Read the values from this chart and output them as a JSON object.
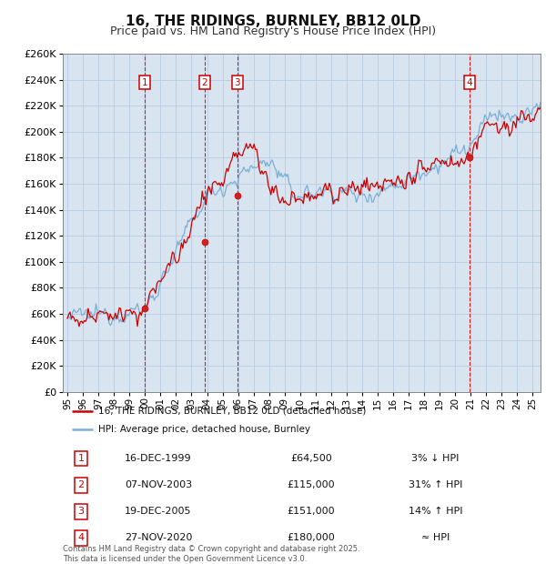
{
  "title": "16, THE RIDINGS, BURNLEY, BB12 0LD",
  "subtitle": "Price paid vs. HM Land Registry's House Price Index (HPI)",
  "title_fontsize": 11,
  "subtitle_fontsize": 9,
  "background_color": "#d8e4f0",
  "figure_bg": "#ffffff",
  "grid_color": "#b8cce4",
  "red_color": "#cc0000",
  "blue_color": "#7bafd4",
  "legend_items": [
    "16, THE RIDINGS, BURNLEY, BB12 0LD (detached house)",
    "HPI: Average price, detached house, Burnley"
  ],
  "sales": [
    {
      "num": 1,
      "date": "16-DEC-1999",
      "year": 1999.96,
      "price": 64500,
      "rel": "3% ↓ HPI"
    },
    {
      "num": 2,
      "date": "07-NOV-2003",
      "year": 2003.85,
      "price": 115000,
      "rel": "31% ↑ HPI"
    },
    {
      "num": 3,
      "date": "19-DEC-2005",
      "year": 2005.96,
      "price": 151000,
      "rel": "14% ↑ HPI"
    },
    {
      "num": 4,
      "date": "27-NOV-2020",
      "year": 2020.9,
      "price": 180000,
      "rel": "≈ HPI"
    }
  ],
  "footer_line1": "Contains HM Land Registry data © Crown copyright and database right 2025.",
  "footer_line2": "This data is licensed under the Open Government Licence v3.0.",
  "ylim": [
    0,
    260000
  ],
  "xmin": 1994.7,
  "xmax": 2025.5
}
